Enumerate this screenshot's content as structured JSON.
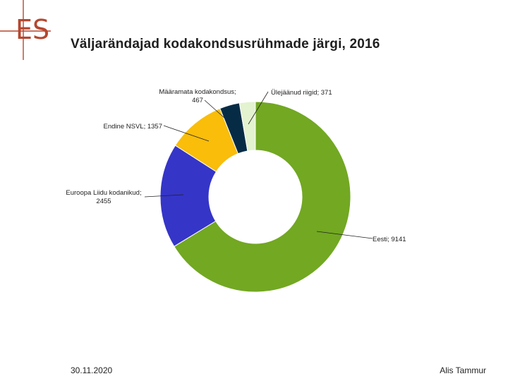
{
  "title": "Väljarändajad kodakondsusrühmade järgi, 2016",
  "footer": {
    "date": "30.11.2020",
    "author": "Alis Tammur"
  },
  "logo": {
    "text": "ES",
    "color": "#b5472e"
  },
  "chart_data": {
    "type": "pie",
    "variant": "donut",
    "title": "Väljarändajad kodakondsusrühmade järgi, 2016",
    "order": "clockwise from top",
    "slices": [
      {
        "name": "Eesti",
        "value": 9141,
        "color": "#72a822",
        "label_lines": [
          "Eesti; 9141"
        ]
      },
      {
        "name": "Euroopa Liidu kodanikud",
        "value": 2455,
        "color": "#3535c8",
        "label_lines": [
          "Euroopa Liidu kodanikud;",
          "2455"
        ]
      },
      {
        "name": "Endine NSVL",
        "value": 1357,
        "color": "#f9bd0a",
        "label_lines": [
          "Endine NSVL; 1357"
        ]
      },
      {
        "name": "Määramata kodakondsus",
        "value": 467,
        "color": "#062c45",
        "label_lines": [
          "Määramata kodakondsus;",
          "467"
        ]
      },
      {
        "name": "Ülejäänud riigid",
        "value": 371,
        "color": "#e3f2cf",
        "label_lines": [
          "Ülejäänud riigid; 371"
        ]
      }
    ]
  }
}
